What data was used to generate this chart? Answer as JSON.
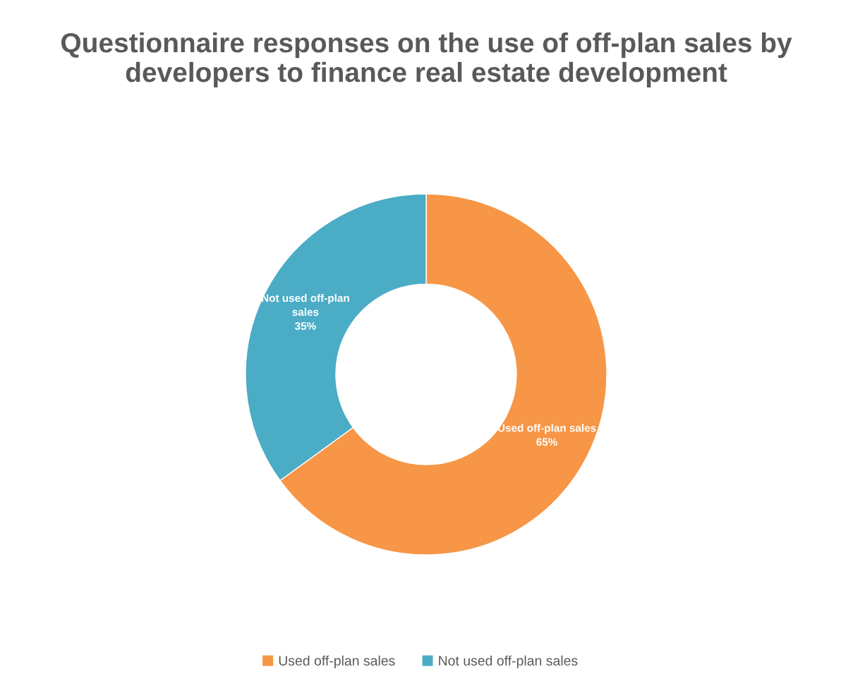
{
  "chart_data": {
    "type": "donut",
    "title": "Questionnaire responses on the use of off-plan sales by developers to finance real estate development",
    "categories": [
      "Used off-plan sales",
      "Not used off-plan sales"
    ],
    "values": [
      65,
      35
    ],
    "colors": [
      "#f79646",
      "#4bacc6"
    ],
    "value_labels": [
      "65%",
      "35%"
    ],
    "legend": "bottom"
  }
}
